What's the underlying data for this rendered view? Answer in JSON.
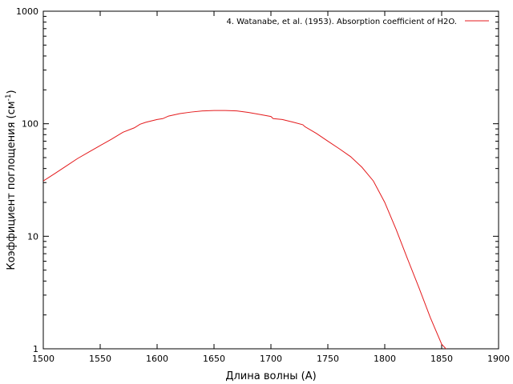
{
  "chart_data": {
    "type": "line",
    "xlabel": "Длина волны (А)",
    "ylabel_main": "Коэффициент поглощения (см",
    "ylabel_sup": "-1",
    "ylabel_end": ")",
    "xlim": [
      1500,
      1900
    ],
    "ylim": [
      1,
      1000
    ],
    "yscale": "log",
    "grid": false,
    "legend_position": "top-right",
    "x_ticks": [
      1500,
      1550,
      1600,
      1650,
      1700,
      1750,
      1800,
      1850,
      1900
    ],
    "x_tick_labels": [
      "1500",
      "1550",
      "1600",
      "1650",
      "1700",
      "1750",
      "1800",
      "1850",
      "1900"
    ],
    "y_ticks": [
      1,
      10,
      100,
      1000
    ],
    "y_tick_labels": [
      "1",
      "10",
      "100",
      "1000"
    ],
    "series": [
      {
        "name": "4. Watanabe, et al. (1953). Absorption coefficient of H2O.",
        "color": "#e41a1c",
        "x": [
          1500,
          1510,
          1520,
          1530,
          1540,
          1550,
          1560,
          1570,
          1580,
          1585,
          1590,
          1600,
          1605,
          1610,
          1620,
          1630,
          1640,
          1650,
          1660,
          1670,
          1680,
          1690,
          1700,
          1702,
          1710,
          1720,
          1728,
          1730,
          1740,
          1750,
          1760,
          1770,
          1780,
          1790,
          1800,
          1810,
          1820,
          1830,
          1840,
          1850,
          1858
        ],
        "y": [
          31,
          36,
          42,
          49,
          56,
          64,
          73,
          84,
          92,
          99,
          103,
          109,
          111,
          117,
          123,
          127,
          130,
          131,
          131,
          130,
          126,
          121,
          116,
          111,
          109,
          103,
          98,
          94,
          82,
          70,
          60,
          51,
          41,
          31,
          20,
          11.5,
          6.3,
          3.5,
          1.9,
          1.1,
          0.9
        ]
      }
    ]
  }
}
